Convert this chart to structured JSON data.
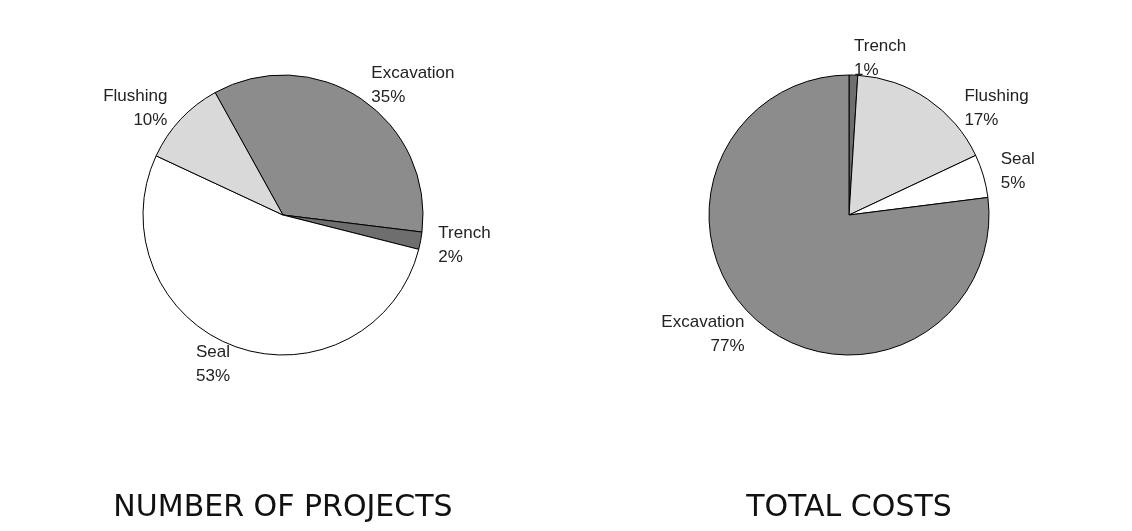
{
  "chart_data": [
    {
      "type": "pie",
      "title": "NUMBER OF PROJECTS",
      "categories": [
        "Excavation",
        "Trench",
        "Seal",
        "Flushing"
      ],
      "values": [
        35,
        2,
        53,
        10
      ],
      "value_labels": [
        "35%",
        "2%",
        "53%",
        "10%"
      ],
      "colors": [
        "#8c8c8c",
        "#6e6e6e",
        "#ffffff",
        "#d9d9d9"
      ]
    },
    {
      "type": "pie",
      "title": "TOTAL COSTS",
      "categories": [
        "Trench",
        "Flushing",
        "Seal",
        "Excavation"
      ],
      "values": [
        1,
        17,
        5,
        77
      ],
      "value_labels": [
        "1%",
        "17%",
        "5%",
        "77%"
      ],
      "colors": [
        "#6e6e6e",
        "#d9d9d9",
        "#ffffff",
        "#8c8c8c"
      ]
    }
  ]
}
